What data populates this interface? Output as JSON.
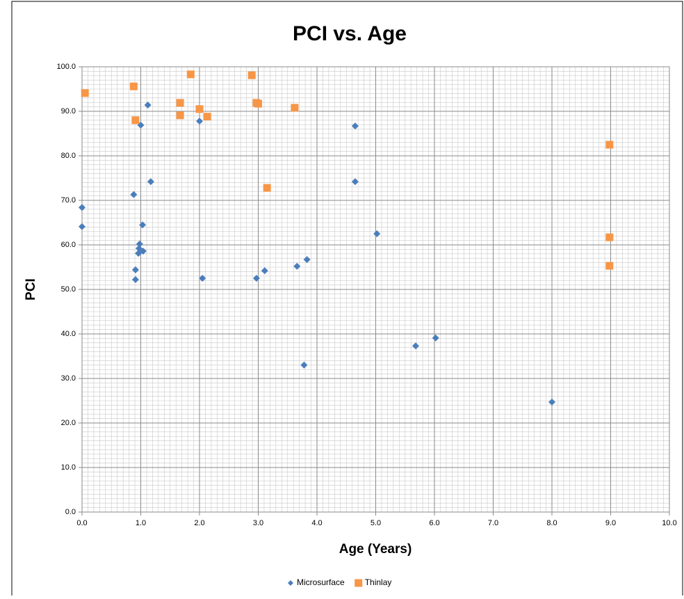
{
  "chart_data": {
    "type": "scatter",
    "title": "PCI vs. Age",
    "x_label": "Age (Years)",
    "y_label": "PCI",
    "xlim": [
      0,
      10
    ],
    "ylim": [
      0,
      100
    ],
    "xticks": [
      {
        "value": 0,
        "label": "0.0"
      },
      {
        "value": 1,
        "label": "1.0"
      },
      {
        "value": 2,
        "label": "2.0"
      },
      {
        "value": 3,
        "label": "3.0"
      },
      {
        "value": 4,
        "label": "4.0"
      },
      {
        "value": 5,
        "label": "5.0"
      },
      {
        "value": 6,
        "label": "6.0"
      },
      {
        "value": 7,
        "label": "7.0"
      },
      {
        "value": 8,
        "label": "8.0"
      },
      {
        "value": 9,
        "label": "9.0"
      },
      {
        "value": 10,
        "label": "10.0"
      }
    ],
    "yticks": [
      {
        "value": 0,
        "label": "0.0"
      },
      {
        "value": 10,
        "label": "10.0"
      },
      {
        "value": 20,
        "label": "20.0"
      },
      {
        "value": 30,
        "label": "30.0"
      },
      {
        "value": 40,
        "label": "40.0"
      },
      {
        "value": 50,
        "label": "50.0"
      },
      {
        "value": 60,
        "label": "60.0"
      },
      {
        "value": 70,
        "label": "70.0"
      },
      {
        "value": 80,
        "label": "80.0"
      },
      {
        "value": 90,
        "label": "90.0"
      },
      {
        "value": 100,
        "label": "100.0"
      }
    ],
    "grid": true,
    "minor_grid": {
      "x": 0.1,
      "y": 1
    },
    "legend": "bottom",
    "series": [
      {
        "name": "Microsurface",
        "color": "#4a7ebb",
        "marker": "diamond",
        "x": [
          0.0,
          0.0,
          0.88,
          1.12,
          1.0,
          1.17,
          1.03,
          0.98,
          0.97,
          1.04,
          0.96,
          0.91,
          0.91,
          2.0,
          2.05,
          2.97,
          3.11,
          3.66,
          3.83,
          3.78,
          4.65,
          4.65,
          5.02,
          5.68,
          6.02,
          8.0
        ],
        "values": [
          68.4,
          64.1,
          71.3,
          91.4,
          86.9,
          74.2,
          64.5,
          60.2,
          59.2,
          58.6,
          58.1,
          54.4,
          52.2,
          87.8,
          52.5,
          52.5,
          54.2,
          55.2,
          56.7,
          33.0,
          86.7,
          74.2,
          62.5,
          37.3,
          39.1,
          24.7
        ]
      },
      {
        "name": "Thinlay",
        "color": "#f79646",
        "marker": "square",
        "x": [
          0.05,
          0.88,
          0.91,
          1.67,
          1.67,
          1.85,
          2.0,
          2.13,
          2.89,
          2.97,
          3.0,
          3.15,
          3.62,
          8.98,
          8.98,
          8.98
        ],
        "values": [
          94.1,
          95.6,
          88.0,
          91.9,
          89.1,
          98.3,
          90.5,
          88.8,
          98.1,
          91.9,
          91.7,
          72.8,
          90.8,
          82.5,
          61.7,
          55.3
        ]
      }
    ]
  }
}
